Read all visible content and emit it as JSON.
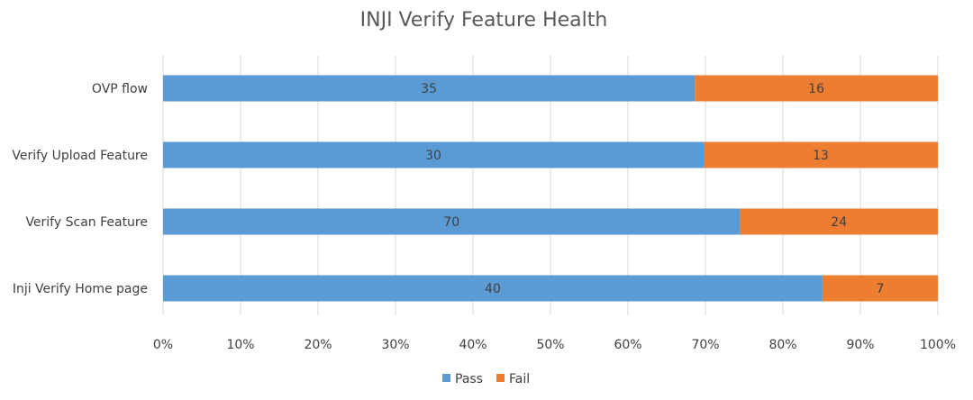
{
  "chart_data": {
    "type": "bar",
    "orientation": "horizontal",
    "stacked": "percent",
    "title": "INJI Verify Feature Health",
    "categories": [
      "OVP flow",
      "Verify Upload Feature",
      "Verify Scan Feature",
      "Inji Verify Home page"
    ],
    "series": [
      {
        "name": "Pass",
        "values": [
          35,
          30,
          70,
          40
        ],
        "color": "#5b9bd5"
      },
      {
        "name": "Fail",
        "values": [
          16,
          13,
          24,
          7
        ],
        "color": "#ed7d31"
      }
    ],
    "xlim": [
      0,
      1
    ],
    "x_ticks": [
      "0%",
      "10%",
      "20%",
      "30%",
      "40%",
      "50%",
      "60%",
      "70%",
      "80%",
      "90%",
      "100%"
    ],
    "grid": "vertical",
    "legend": "bottom"
  }
}
